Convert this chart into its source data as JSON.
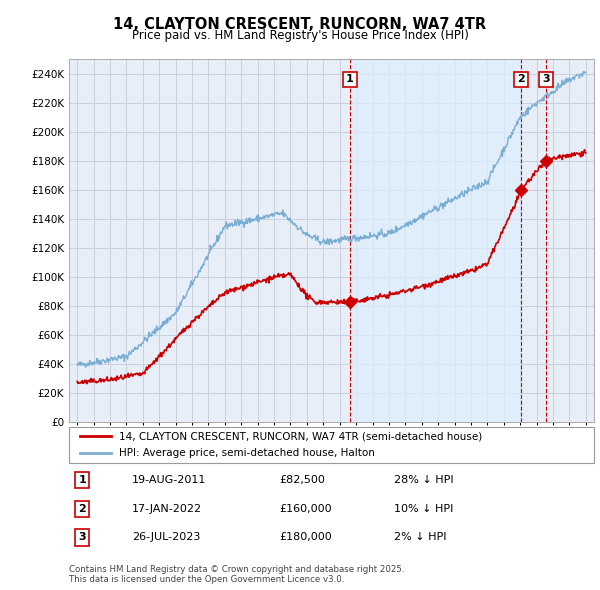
{
  "title": "14, CLAYTON CRESCENT, RUNCORN, WA7 4TR",
  "subtitle": "Price paid vs. HM Land Registry's House Price Index (HPI)",
  "legend_line1": "14, CLAYTON CRESCENT, RUNCORN, WA7 4TR (semi-detached house)",
  "legend_line2": "HPI: Average price, semi-detached house, Halton",
  "transactions": [
    {
      "num": 1,
      "date": "19-AUG-2011",
      "price": 82500,
      "pct": "28% ↓ HPI",
      "x_year": 2011.63
    },
    {
      "num": 2,
      "date": "17-JAN-2022",
      "price": 160000,
      "pct": "10% ↓ HPI",
      "x_year": 2022.05
    },
    {
      "num": 3,
      "date": "26-JUL-2023",
      "price": 180000,
      "pct": "2% ↓ HPI",
      "x_year": 2023.57
    }
  ],
  "red_color": "#cc0000",
  "blue_color": "#7aadd4",
  "shade_color": "#ddeeff",
  "background_color": "#e8eef8",
  "grid_color": "#c8d0e0",
  "ylim": [
    0,
    250000
  ],
  "xlim": [
    1994.5,
    2026.5
  ],
  "copyright": "Contains HM Land Registry data © Crown copyright and database right 2025.\nThis data is licensed under the Open Government Licence v3.0."
}
